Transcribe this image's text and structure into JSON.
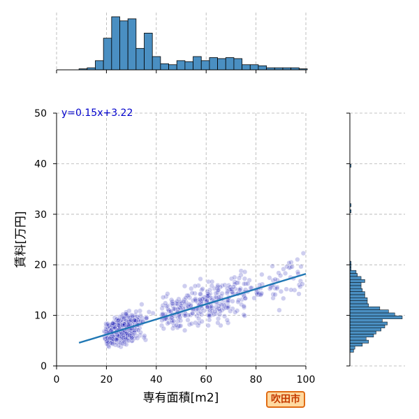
{
  "chart_data": {
    "type": "scatter",
    "xlabel": "専有面積[m2]",
    "ylabel": "賃料[万円]",
    "xlim": [
      0,
      100
    ],
    "ylim": [
      0,
      50
    ],
    "x_ticks": [
      0,
      20,
      40,
      60,
      80,
      100
    ],
    "y_ticks": [
      0,
      10,
      20,
      30,
      40,
      50
    ],
    "grid": true,
    "annotation": "y=0.15x+3.22",
    "annotation_color": "#0000cc",
    "point_color": "#1f1fb4",
    "line_color": "#1f77b4",
    "bar_color": "#4a8fc2",
    "regression": {
      "slope": 0.15,
      "intercept": 3.22,
      "x_range": [
        9,
        100
      ]
    },
    "top_histogram": {
      "bin_start": 9,
      "bin_width": 3.27,
      "counts": [
        1,
        2,
        9,
        31,
        52,
        48,
        50,
        21,
        36,
        13,
        6,
        5,
        9,
        8,
        13,
        9,
        12,
        11,
        12,
        11,
        5,
        5,
        4,
        2,
        2,
        2,
        2,
        1
      ]
    },
    "right_histogram": {
      "bin_start": 2.7,
      "bin_width": 0.6,
      "counts": [
        3,
        4,
        10,
        15,
        13,
        19,
        21,
        25,
        28,
        30,
        26,
        42,
        36,
        31,
        24,
        15,
        14,
        14,
        12,
        12,
        10,
        9,
        9,
        12,
        9,
        6,
        5,
        1,
        1,
        1,
        0,
        0,
        0,
        0,
        0,
        0,
        0,
        0,
        0,
        0,
        0,
        0,
        0,
        0,
        0,
        0,
        1,
        0,
        1,
        0,
        0,
        0,
        0,
        0,
        0,
        0,
        0,
        0,
        0,
        0,
        0,
        1
      ]
    }
  },
  "badge": {
    "text": "吹田市"
  }
}
